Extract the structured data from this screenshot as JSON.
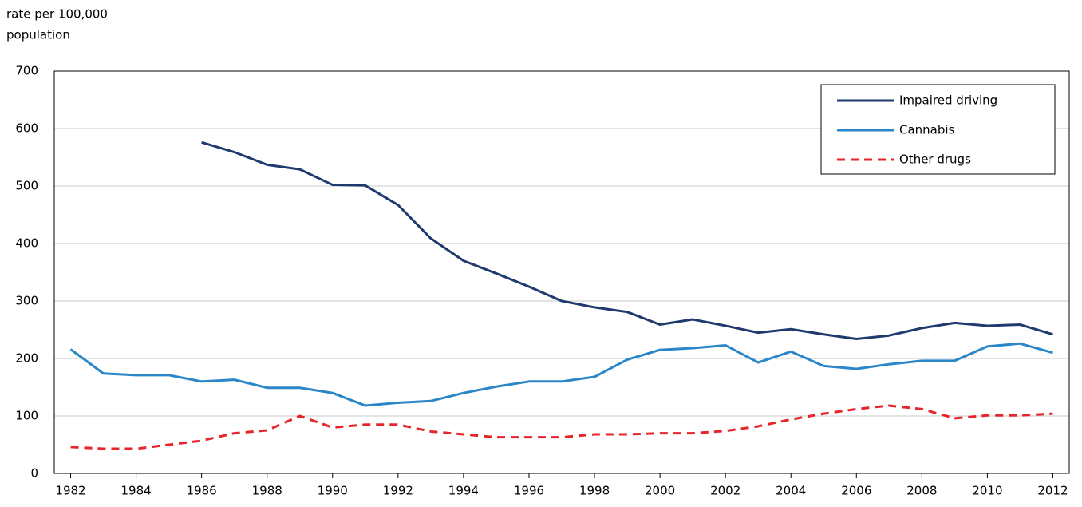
{
  "chart_data": {
    "type": "line",
    "ylabel": [
      "rate per 100,000",
      "population"
    ],
    "x": [
      1982,
      1983,
      1984,
      1985,
      1986,
      1987,
      1988,
      1989,
      1990,
      1991,
      1992,
      1993,
      1994,
      1995,
      1996,
      1997,
      1998,
      1999,
      2000,
      2001,
      2002,
      2003,
      2004,
      2005,
      2006,
      2007,
      2008,
      2009,
      2010,
      2011,
      2012
    ],
    "series": [
      {
        "name": "Impaired driving",
        "color": "#1f3a6e",
        "dashed": false,
        "values": [
          null,
          null,
          null,
          null,
          576,
          559,
          537,
          529,
          502,
          501,
          467,
          409,
          370,
          348,
          325,
          300,
          289,
          281,
          259,
          268,
          257,
          245,
          251,
          242,
          234,
          240,
          253,
          262,
          257,
          259,
          242
        ]
      },
      {
        "name": "Cannabis",
        "color": "#2a86c9",
        "dashed": false,
        "values": [
          216,
          174,
          171,
          171,
          160,
          163,
          149,
          149,
          140,
          118,
          123,
          126,
          140,
          151,
          160,
          160,
          168,
          198,
          215,
          218,
          223,
          193,
          212,
          187,
          182,
          190,
          196,
          196,
          221,
          226,
          210
        ]
      },
      {
        "name": "Other drugs",
        "color": "#e8242a",
        "dashed": true,
        "values": [
          46,
          43,
          43,
          50,
          57,
          70,
          75,
          100,
          80,
          85,
          85,
          73,
          68,
          63,
          63,
          63,
          68,
          68,
          70,
          70,
          74,
          82,
          94,
          104,
          112,
          118,
          112,
          96,
          101,
          101,
          104
        ]
      }
    ],
    "xlim": [
      1981.5,
      2012.5
    ],
    "xticks": [
      1982,
      1984,
      1986,
      1988,
      1990,
      1992,
      1994,
      1996,
      1998,
      2000,
      2002,
      2004,
      2006,
      2008,
      2010,
      2012
    ],
    "ylim": [
      0,
      700
    ],
    "yticks": [
      0,
      100,
      200,
      300,
      400,
      500,
      600,
      700
    ],
    "grid": true,
    "legend": "top-right"
  }
}
